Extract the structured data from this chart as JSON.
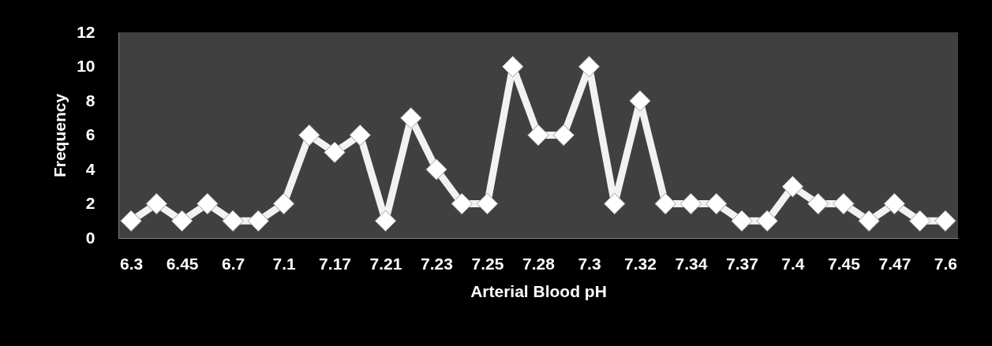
{
  "chart_data": {
    "type": "line",
    "xlabel": "Arterial Blood pH",
    "ylabel": "Frequency",
    "categories": [
      "6.3",
      null,
      "6.45",
      null,
      "6.7",
      null,
      "7.1",
      null,
      "7.17",
      null,
      "7.21",
      null,
      "7.23",
      null,
      "7.25",
      null,
      "7.28",
      null,
      "7.3",
      null,
      "7.32",
      null,
      "7.34",
      null,
      "7.37",
      null,
      "7.4",
      null,
      "7.45",
      null,
      "7.47",
      null,
      "7.6"
    ],
    "series": [
      {
        "color": "#f2f2f2",
        "values": [
          1,
          2,
          1,
          2,
          1,
          1,
          2,
          6,
          5,
          6,
          1,
          7,
          4,
          2,
          2,
          10,
          6,
          6,
          10,
          2,
          8,
          2,
          2,
          2,
          1,
          1,
          3,
          2,
          2,
          1,
          2,
          1,
          1
        ]
      }
    ],
    "ylim": [
      0,
      12
    ],
    "yticks": [
      0,
      2,
      4,
      6,
      8,
      10,
      12
    ],
    "grid": false,
    "marker": "diamond",
    "line_style": "solid"
  }
}
